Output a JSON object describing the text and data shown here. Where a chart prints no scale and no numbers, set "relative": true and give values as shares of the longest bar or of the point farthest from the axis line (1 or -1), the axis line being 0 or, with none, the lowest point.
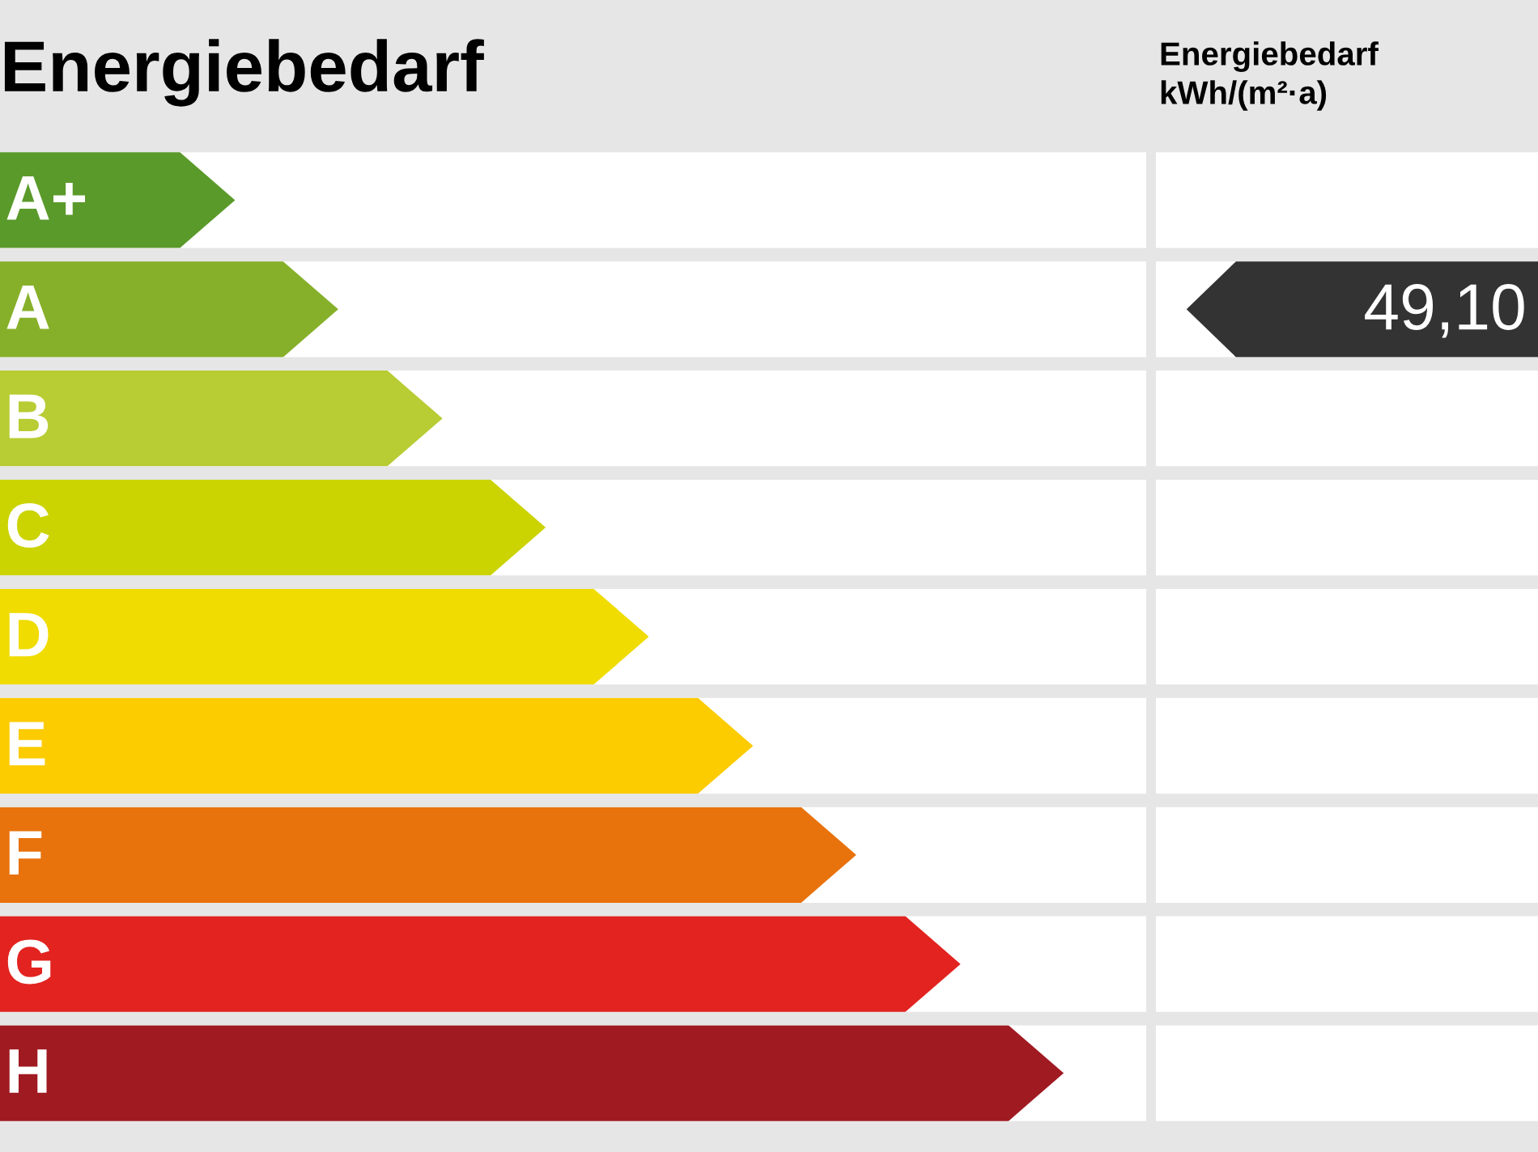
{
  "chart_data": {
    "type": "bar",
    "orientation": "horizontal",
    "relative": true,
    "title": "Energiebedarf",
    "categories": [
      "A+",
      "A",
      "B",
      "C",
      "D",
      "E",
      "F",
      "G",
      "H"
    ],
    "values": [
      0.221,
      0.318,
      0.416,
      0.513,
      0.61,
      0.708,
      0.805,
      0.903,
      1
    ],
    "colors": [
      "#5a9a2a",
      "#86b02a",
      "#b8cc33",
      "#cbd300",
      "#f0dc00",
      "#fccb00",
      "#e8720c",
      "#e2231f",
      "#a01a22"
    ],
    "grid": "y",
    "annotations": [
      "Energiebedarf\nkWh/(m²·a)",
      "49,10"
    ]
  }
}
